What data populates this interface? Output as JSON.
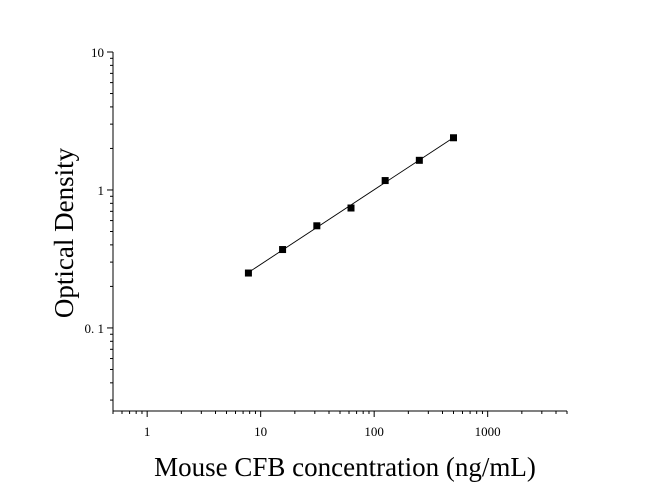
{
  "chart_data": {
    "type": "scatter",
    "title": "",
    "xlabel": "Mouse CFB concentration (ng/mL)",
    "ylabel": "Optical Density",
    "x_scale": "log",
    "y_scale": "log",
    "xlim": [
      0.5,
      5000
    ],
    "ylim": [
      0.025,
      10
    ],
    "x_ticks": [
      1,
      10,
      100,
      1000
    ],
    "x_tick_labels": [
      "1",
      "10",
      "100",
      "1000"
    ],
    "y_ticks": [
      0.1,
      1,
      10
    ],
    "y_tick_labels": [
      "0. 1",
      "1",
      "10"
    ],
    "grid": false,
    "series": [
      {
        "x": [
          7.8,
          15.6,
          31.25,
          62.5,
          125,
          250,
          500
        ],
        "y": [
          0.25,
          0.37,
          0.55,
          0.74,
          1.17,
          1.64,
          2.39
        ],
        "marker": "square",
        "fit_line": true
      }
    ],
    "colors": {
      "marker": "#000000",
      "line": "#000000",
      "axis": "#000000"
    }
  }
}
